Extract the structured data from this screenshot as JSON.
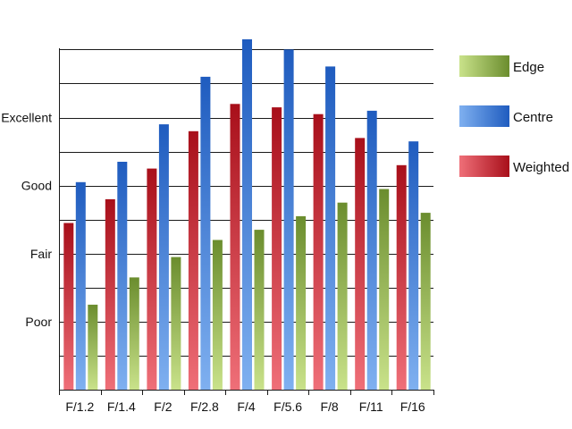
{
  "chart_data": {
    "type": "bar",
    "title": "",
    "xlabel": "",
    "ylabel": "",
    "categories": [
      "F/1.2",
      "F/1.4",
      "F/2",
      "F/2.8",
      "F/4",
      "F/5.6",
      "F/8",
      "F/11",
      "F/16"
    ],
    "y_scale_labels": [
      {
        "label": "Poor",
        "value": 2
      },
      {
        "label": "Fair",
        "value": 4
      },
      {
        "label": "Good",
        "value": 6
      },
      {
        "label": "Excellent",
        "value": 8
      }
    ],
    "ylim": [
      0,
      10.3
    ],
    "grid": true,
    "legend_position": "right",
    "series": [
      {
        "name": "Weighted",
        "color": "#d32f3a",
        "values": [
          4.9,
          5.6,
          6.5,
          7.6,
          8.4,
          8.3,
          8.1,
          7.4,
          6.6
        ]
      },
      {
        "name": "Centre",
        "color": "#3a7fd8",
        "values": [
          6.1,
          6.7,
          7.8,
          9.2,
          10.3,
          10.0,
          9.5,
          8.2,
          7.3
        ]
      },
      {
        "name": "Edge",
        "color": "#8ab04a",
        "values": [
          2.5,
          3.3,
          3.9,
          4.4,
          4.7,
          5.1,
          5.5,
          5.9,
          5.2
        ]
      }
    ],
    "legend": [
      {
        "name": "Edge",
        "color": "#8ab04a"
      },
      {
        "name": "Centre",
        "color": "#3a7fd8"
      },
      {
        "name": "Weighted",
        "color": "#d32f3a"
      }
    ]
  }
}
